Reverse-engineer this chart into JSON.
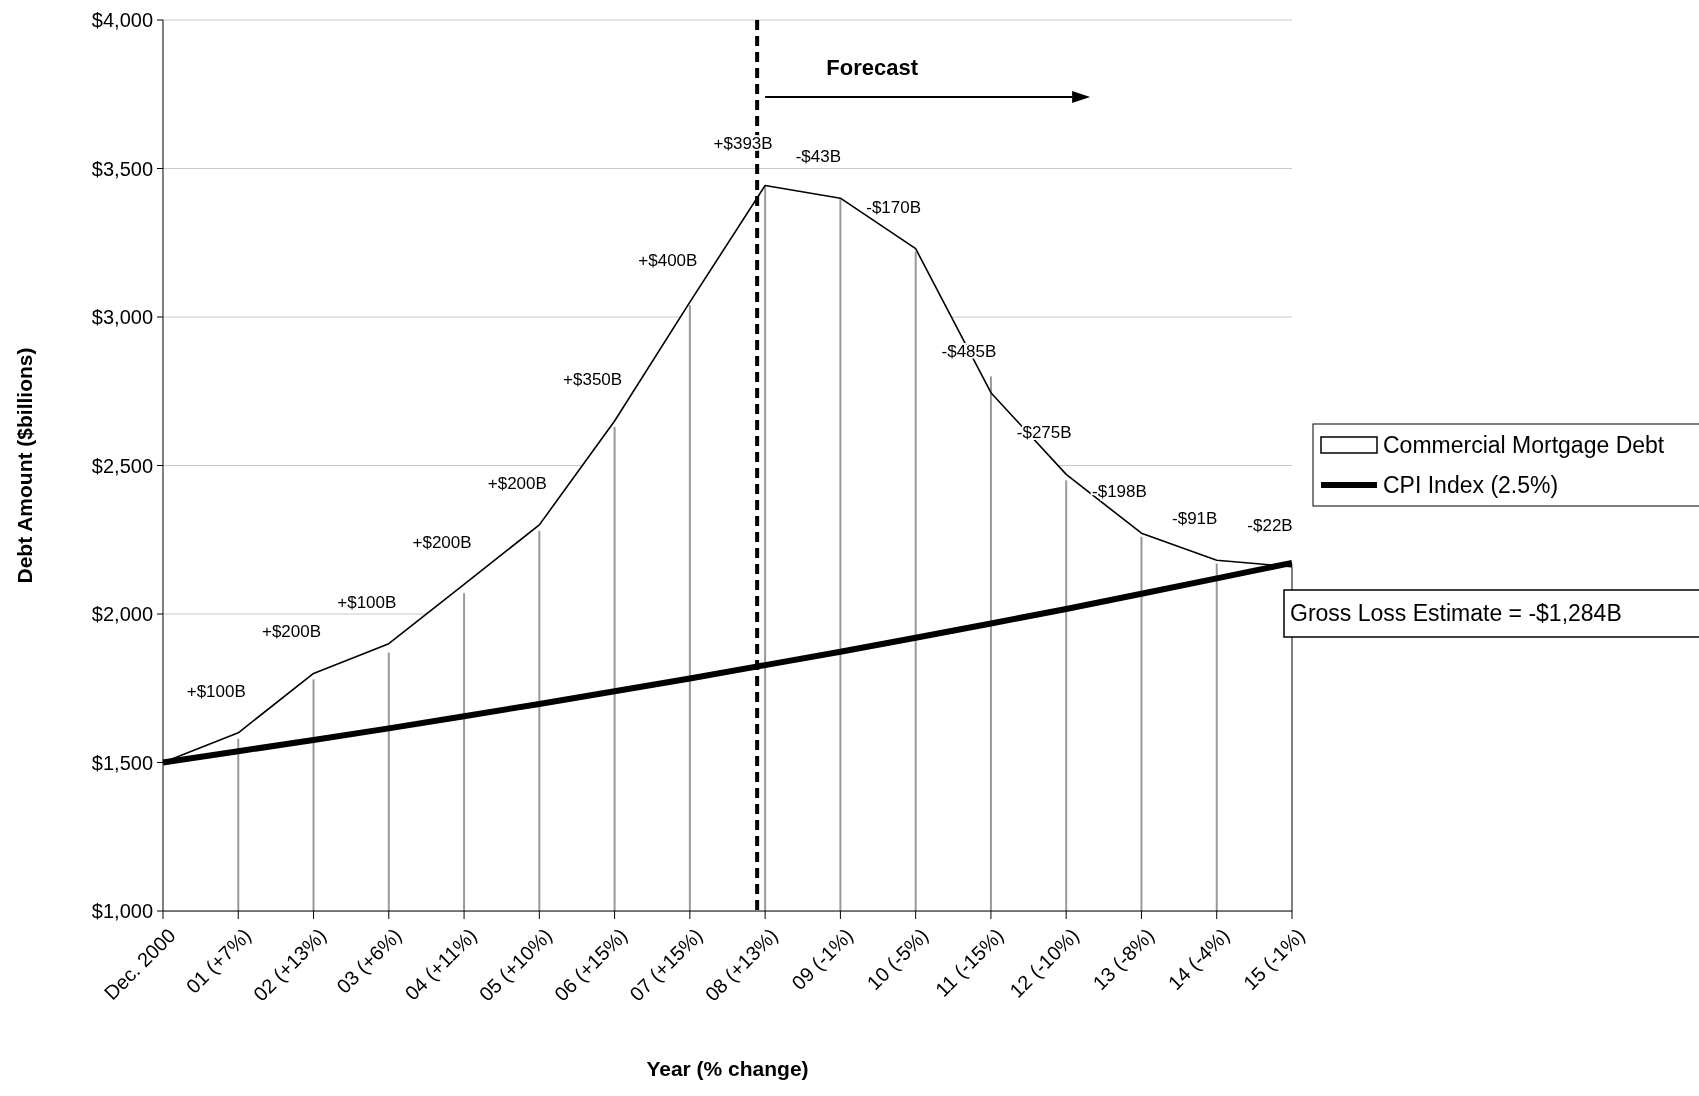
{
  "chart_data": {
    "type": "area",
    "xlabel": "Year (% change)",
    "ylabel": "Debt Amount ($billions)",
    "categories": [
      "Dec. 2000",
      "01 (+7%)",
      "02 (+13%)",
      "03 (+6%)",
      "04 (+11%)",
      "05 (+10%)",
      "06 (+15%)",
      "07 (+15%)",
      "08 (+13%)",
      "09 (-1%)",
      "10 (-5%)",
      "11 (-15%)",
      "12 (-10%)",
      "13 (-8%)",
      "14 (-4%)",
      "15 (-1%)"
    ],
    "series": [
      {
        "name": "Commercial Mortgage Debt",
        "color": "#000000",
        "values": [
          1500,
          1600,
          1800,
          1900,
          2100,
          2300,
          2650,
          3050,
          3443,
          3400,
          3230,
          2745,
          2470,
          2272,
          2181,
          2159
        ]
      },
      {
        "type": "line",
        "name": "CPI Index (2.5%)",
        "color": "#000000",
        "values": [
          1500,
          1538,
          1576,
          1615,
          1656,
          1697,
          1740,
          1783,
          1828,
          1873,
          1920,
          1968,
          2017,
          2068,
          2120,
          2172
        ]
      },
      {
        "type": "bar",
        "color": "#999999",
        "values": [
          null,
          1580,
          1780,
          1870,
          2070,
          2280,
          2630,
          3040,
          3440,
          3400,
          3220,
          2800,
          2450,
          2260,
          2170,
          null
        ]
      }
    ],
    "ylim": [
      1000,
      4000
    ],
    "yticks": [
      {
        "value": 1000,
        "label": "$1,000"
      },
      {
        "value": 1500,
        "label": "$1,500"
      },
      {
        "value": 2000,
        "label": "$2,000"
      },
      {
        "value": 2500,
        "label": "$2,500"
      },
      {
        "value": 3000,
        "label": "$3,000"
      },
      {
        "value": 3500,
        "label": "$3,500"
      },
      {
        "value": 4000,
        "label": "$4,000"
      }
    ],
    "grid": "y",
    "legend": "right",
    "ref_lines": [
      {
        "axis": "x",
        "value": "08 (+13%)",
        "color": "#000000",
        "line_style": "dashed"
      }
    ],
    "annotations": [
      "Forecast",
      "Gross Loss Estimate = -$1,284B",
      {
        "text": "+$100B",
        "x": "01 (+7%)",
        "y": 1600
      },
      {
        "text": "+$200B",
        "x": "02 (+13%)",
        "y": 1800
      },
      {
        "text": "+$100B",
        "x": "03 (+6%)",
        "y": 1900
      },
      {
        "text": "+$200B",
        "x": "04 (+11%)",
        "y": 2100
      },
      {
        "text": "+$200B",
        "x": "05 (+10%)",
        "y": 2300
      },
      {
        "text": "+$350B",
        "x": "06 (+15%)",
        "y": 2650
      },
      {
        "text": "+$400B",
        "x": "07 (+15%)",
        "y": 3050
      },
      {
        "text": "+$393B",
        "x": "08 (+13%)",
        "y": 3443
      },
      {
        "text": "-$43B",
        "x": "09 (-1%)",
        "y": 3400
      },
      {
        "text": "-$170B",
        "x": "10 (-5%)",
        "y": 3230
      },
      {
        "text": "-$485B",
        "x": "11 (-15%)",
        "y": 2745
      },
      {
        "text": "-$275B",
        "x": "12 (-10%)",
        "y": 2470
      },
      {
        "text": "-$198B",
        "x": "13 (-8%)",
        "y": 2272
      },
      {
        "text": "-$91B",
        "x": "14 (-4%)",
        "y": 2181
      },
      {
        "text": "-$22B",
        "x": "15 (-1%)",
        "y": 2159
      }
    ]
  }
}
